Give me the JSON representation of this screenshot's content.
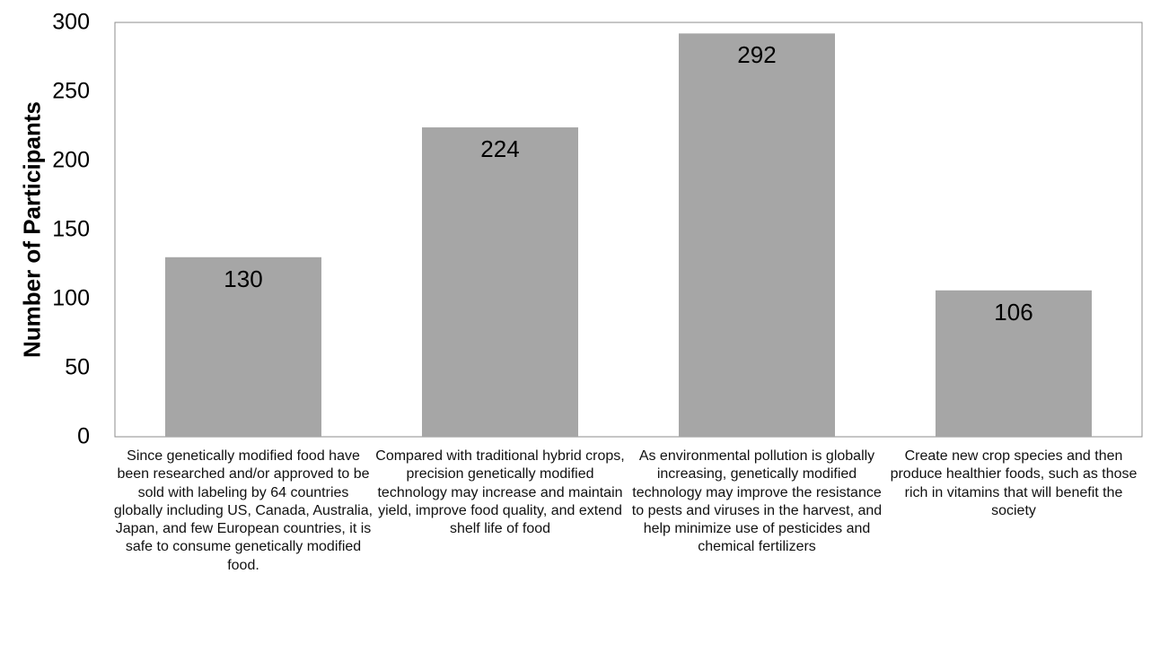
{
  "chart_data": {
    "type": "bar",
    "title": "",
    "xlabel": "",
    "ylabel": "Number of Participants",
    "ylim": [
      0,
      300
    ],
    "yticks": [
      "0",
      "50",
      "100",
      "150",
      "200",
      "250",
      "300"
    ],
    "categories": [
      "Since genetically modified food have been researched and/or approved to be sold with labeling by 64 countries globally including US, Canada, Australia, Japan, and few European countries, it is safe to consume genetically modified food.",
      "Compared with traditional hybrid crops, precision genetically modified technology may increase and maintain yield, improve food quality, and extend shelf life of food",
      "As environmental pollution is globally increasing, genetically modified technology may improve the resistance to pests and viruses in the harvest, and help minimize use of pesticides and chemical fertilizers",
      "Create new crop species and then produce healthier foods, such as those rich in vitamins that will benefit the society"
    ],
    "values": [
      130,
      224,
      292,
      106
    ],
    "data_labels": [
      "130",
      "224",
      "292",
      "106"
    ],
    "bar_color": "#a6a6a6",
    "grid": false,
    "legend": "none"
  }
}
